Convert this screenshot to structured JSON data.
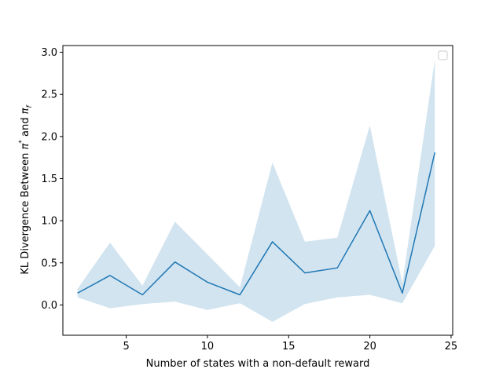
{
  "chart_data": {
    "type": "line",
    "title": "",
    "xlabel": "Number of states with a non-default reward",
    "ylabel": {
      "prefix": "KL Divergence Between ",
      "pi": "π",
      "star": "*",
      "and": " and ",
      "sub": "f"
    },
    "xlim": [
      1.1,
      25.1
    ],
    "ylim": [
      -0.36,
      3.08
    ],
    "xticks": [
      5,
      10,
      15,
      20,
      25
    ],
    "yticks": [
      0.0,
      0.5,
      1.0,
      1.5,
      2.0,
      2.5,
      3.0
    ],
    "x": [
      2,
      4,
      6,
      8,
      10,
      12,
      14,
      16,
      18,
      20,
      22,
      24
    ],
    "series": [
      {
        "values": [
          0.14,
          0.35,
          0.12,
          0.51,
          0.27,
          0.12,
          0.75,
          0.38,
          0.44,
          1.12,
          0.14,
          1.81
        ],
        "upper": [
          0.19,
          0.74,
          0.23,
          0.99,
          0.6,
          0.21,
          1.69,
          0.75,
          0.8,
          2.13,
          0.26,
          2.91
        ],
        "lower": [
          0.09,
          -0.04,
          0.01,
          0.04,
          -0.06,
          0.02,
          -0.2,
          0.01,
          0.09,
          0.12,
          0.02,
          0.7
        ],
        "color": "#1f77b4",
        "band_color": "#1f77b4"
      }
    ],
    "legend": {
      "location": "top-right",
      "entries": []
    },
    "grid": false
  }
}
